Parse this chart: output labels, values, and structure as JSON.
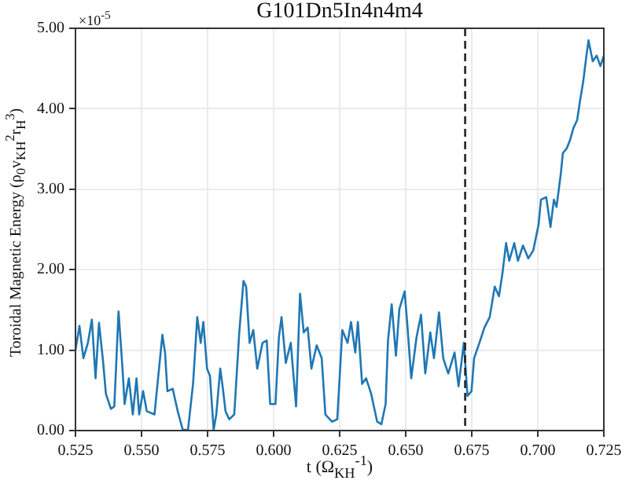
{
  "chart_data": {
    "type": "line",
    "title": "G101Dn5In4n4m4",
    "xlabel": "t (Ω$_{KH}$$^{-1}$)",
    "ylabel": "Toroidal Magnetic Energy (ρ$_{0}$v$_{KH}$$^{2}$r$_{H}$$^{3}$)",
    "annotations": [
      "×10$^{-5}$"
    ],
    "xlim": [
      0.525,
      0.725
    ],
    "xticks": [
      {
        "value": 0.525,
        "label": "0.525"
      },
      {
        "value": 0.55,
        "label": "0.550"
      },
      {
        "value": 0.575,
        "label": "0.575"
      },
      {
        "value": 0.6,
        "label": "0.600"
      },
      {
        "value": 0.625,
        "label": "0.625"
      },
      {
        "value": 0.65,
        "label": "0.650"
      },
      {
        "value": 0.675,
        "label": "0.675"
      },
      {
        "value": 0.7,
        "label": "0.700"
      },
      {
        "value": 0.725,
        "label": "0.725"
      }
    ],
    "ylim": [
      0,
      5
    ],
    "yticks": [
      {
        "value": 0,
        "label": "0.00"
      },
      {
        "value": 1,
        "label": "1.00"
      },
      {
        "value": 2,
        "label": "2.00"
      },
      {
        "value": 3,
        "label": "3.00"
      },
      {
        "value": 4,
        "label": "4.00"
      },
      {
        "value": 5,
        "label": "5.00"
      }
    ],
    "grid": true,
    "marker": "none",
    "line_style": "solid",
    "ref_lines": [
      {
        "axis": "x",
        "value": 0.6725,
        "color": "#222222",
        "line_style": "dashed"
      }
    ],
    "series": [
      {
        "color": "#1f77b4",
        "x": [
          0.525,
          0.5265,
          0.528,
          0.5297,
          0.5312,
          0.5326,
          0.5339,
          0.5355,
          0.5365,
          0.5384,
          0.5397,
          0.5413,
          0.5428,
          0.5436,
          0.5452,
          0.5467,
          0.5481,
          0.5491,
          0.5506,
          0.552,
          0.5549,
          0.5579,
          0.5589,
          0.5598,
          0.5618,
          0.5637,
          0.5656,
          0.5676,
          0.5695,
          0.5711,
          0.5724,
          0.5734,
          0.5748,
          0.5759,
          0.5773,
          0.5783,
          0.5798,
          0.5808,
          0.5818,
          0.5832,
          0.5851,
          0.587,
          0.5886,
          0.5896,
          0.5909,
          0.5923,
          0.5938,
          0.5958,
          0.5974,
          0.5987,
          0.6007,
          0.602,
          0.603,
          0.6046,
          0.6065,
          0.6085,
          0.61,
          0.6114,
          0.6129,
          0.6143,
          0.6163,
          0.6182,
          0.6196,
          0.6221,
          0.6241,
          0.626,
          0.628,
          0.6293,
          0.6309,
          0.6319,
          0.6335,
          0.635,
          0.6369,
          0.6392,
          0.6408,
          0.6424,
          0.6433,
          0.6447,
          0.6463,
          0.6476,
          0.6496,
          0.6506,
          0.6521,
          0.6541,
          0.6558,
          0.6574,
          0.6593,
          0.6607,
          0.6626,
          0.6642,
          0.6661,
          0.6685,
          0.67,
          0.672,
          0.6734,
          0.6749,
          0.6759,
          0.6779,
          0.6798,
          0.6818,
          0.6837,
          0.6853,
          0.6866,
          0.688,
          0.6892,
          0.6911,
          0.6925,
          0.6944,
          0.6964,
          0.6983,
          0.7003,
          0.7012,
          0.7032,
          0.7048,
          0.7061,
          0.7071,
          0.7087,
          0.7095,
          0.711,
          0.7122,
          0.7135,
          0.7149,
          0.7159,
          0.7172,
          0.7184,
          0.7192,
          0.7198,
          0.7208,
          0.7223,
          0.7237,
          0.725
        ],
        "values": [
          1.0,
          1.3,
          0.9,
          1.09,
          1.38,
          0.65,
          1.34,
          0.84,
          0.46,
          0.27,
          0.3,
          1.48,
          0.77,
          0.33,
          0.65,
          0.2,
          0.65,
          0.2,
          0.49,
          0.24,
          0.2,
          1.19,
          0.97,
          0.49,
          0.52,
          0.24,
          0.01,
          0.01,
          0.58,
          1.41,
          1.09,
          1.35,
          0.77,
          0.68,
          0.01,
          0.2,
          0.77,
          0.52,
          0.24,
          0.14,
          0.2,
          1.22,
          1.86,
          1.79,
          1.09,
          1.25,
          0.77,
          1.09,
          1.12,
          0.33,
          0.33,
          1.16,
          1.41,
          0.84,
          1.09,
          0.3,
          1.7,
          1.22,
          1.28,
          0.77,
          1.06,
          0.9,
          0.2,
          0.11,
          0.14,
          1.25,
          1.09,
          1.35,
          0.97,
          1.35,
          0.58,
          0.65,
          0.46,
          0.11,
          0.08,
          0.33,
          1.12,
          1.57,
          0.93,
          1.51,
          1.73,
          1.32,
          0.65,
          1.16,
          1.44,
          0.71,
          1.22,
          0.9,
          1.47,
          0.9,
          0.71,
          0.97,
          0.55,
          1.09,
          0.43,
          0.49,
          0.9,
          1.09,
          1.28,
          1.41,
          1.79,
          1.67,
          1.95,
          2.33,
          2.11,
          2.33,
          2.11,
          2.3,
          2.14,
          2.24,
          2.56,
          2.87,
          2.9,
          2.53,
          2.87,
          2.78,
          3.19,
          3.45,
          3.51,
          3.61,
          3.76,
          3.86,
          4.08,
          4.34,
          4.66,
          4.85,
          4.75,
          4.59,
          4.66,
          4.53,
          4.66
        ]
      }
    ]
  }
}
